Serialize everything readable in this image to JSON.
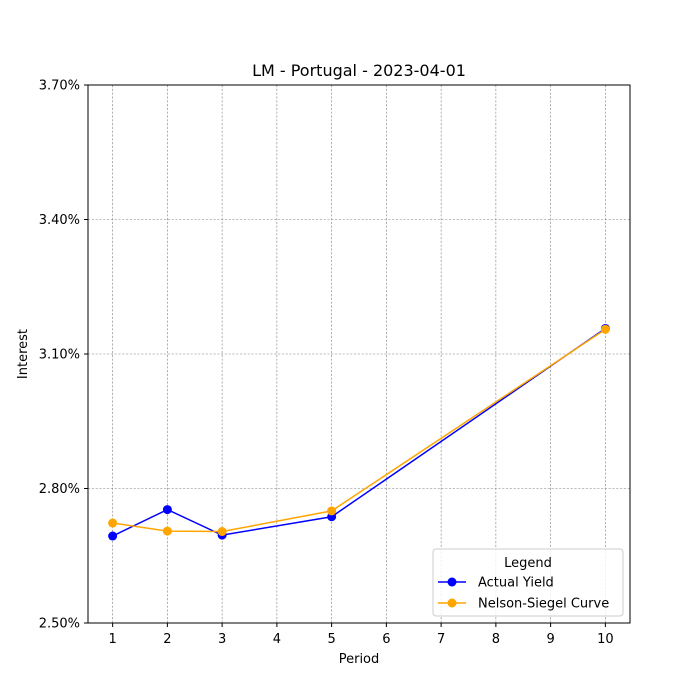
{
  "chart_data": {
    "type": "line",
    "title": "LM - Portugal - 2023-04-01",
    "xlabel": "Period",
    "ylabel": "Interest",
    "xlim": [
      0.55,
      10.45
    ],
    "ylim": [
      2.5,
      3.7
    ],
    "xticks": [
      1,
      2,
      3,
      4,
      5,
      6,
      7,
      8,
      9,
      10
    ],
    "yticks": [
      2.5,
      2.8,
      3.1,
      3.4,
      3.7
    ],
    "ytick_labels": [
      "2.50%",
      "2.80%",
      "3.10%",
      "3.40%",
      "3.70%"
    ],
    "grid": true,
    "legend": {
      "title": "Legend",
      "placement": "lower-right"
    },
    "series": [
      {
        "name": "Actual Yield",
        "color": "#0000ff",
        "x": [
          1,
          2,
          3,
          5,
          10
        ],
        "y": [
          2.694,
          2.753,
          2.696,
          2.737,
          3.157
        ]
      },
      {
        "name": "Nelson-Siegel Curve",
        "color": "#ffa500",
        "x": [
          1,
          2,
          3,
          5,
          10
        ],
        "y": [
          2.723,
          2.705,
          2.704,
          2.75,
          3.155
        ]
      }
    ]
  }
}
